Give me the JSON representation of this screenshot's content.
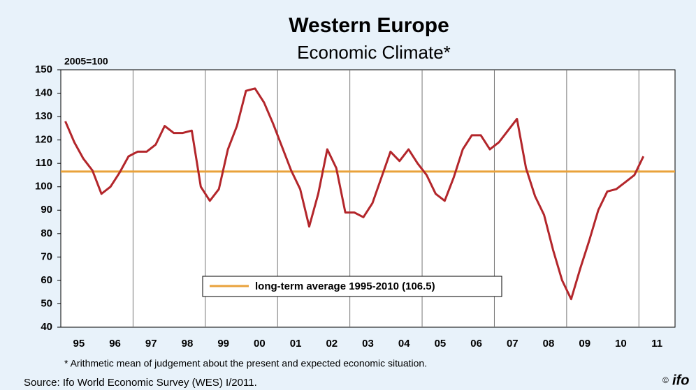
{
  "chart_data": {
    "type": "line",
    "title": "Western Europe",
    "subtitle": "Economic Climate*",
    "y_label": "2005=100",
    "footnote": "* Arithmetic mean of judgement about the present and expected economic situation.",
    "source": "Source: Ifo World Economic Survey (WES) I/2011.",
    "logo": "ifo",
    "xlim": [
      1995,
      2012
    ],
    "xticks": [
      {
        "value": 1995.5,
        "label": "95"
      },
      {
        "value": 1996.5,
        "label": "96"
      },
      {
        "value": 1997.5,
        "label": "97"
      },
      {
        "value": 1998.5,
        "label": "98"
      },
      {
        "value": 1999.5,
        "label": "99"
      },
      {
        "value": 2000.5,
        "label": "00"
      },
      {
        "value": 2001.5,
        "label": "01"
      },
      {
        "value": 2002.5,
        "label": "02"
      },
      {
        "value": 2003.5,
        "label": "03"
      },
      {
        "value": 2004.5,
        "label": "04"
      },
      {
        "value": 2005.5,
        "label": "05"
      },
      {
        "value": 2006.5,
        "label": "06"
      },
      {
        "value": 2007.5,
        "label": "07"
      },
      {
        "value": 2008.5,
        "label": "08"
      },
      {
        "value": 2009.5,
        "label": "09"
      },
      {
        "value": 2010.5,
        "label": "10"
      },
      {
        "value": 2011.5,
        "label": "11"
      }
    ],
    "xgrid": [
      1997,
      1999,
      2001,
      2003,
      2005,
      2007,
      2009,
      2011
    ],
    "ylim": [
      40,
      150
    ],
    "yticks": [
      40,
      50,
      60,
      70,
      80,
      90,
      100,
      110,
      120,
      130,
      140,
      150
    ],
    "x": [
      1995.125,
      1995.375,
      1995.625,
      1995.875,
      1996.125,
      1996.375,
      1996.625,
      1996.875,
      1997.125,
      1997.375,
      1997.625,
      1997.875,
      1998.125,
      1998.375,
      1998.625,
      1998.875,
      1999.125,
      1999.375,
      1999.625,
      1999.875,
      2000.125,
      2000.375,
      2000.625,
      2000.875,
      2001.125,
      2001.375,
      2001.625,
      2001.875,
      2002.125,
      2002.375,
      2002.625,
      2002.875,
      2003.125,
      2003.375,
      2003.625,
      2003.875,
      2004.125,
      2004.375,
      2004.625,
      2004.875,
      2005.125,
      2005.375,
      2005.625,
      2005.875,
      2006.125,
      2006.375,
      2006.625,
      2006.875,
      2007.125,
      2007.375,
      2007.625,
      2007.875,
      2008.125,
      2008.375,
      2008.625,
      2008.875,
      2009.125,
      2009.375,
      2009.625,
      2009.875,
      2010.125,
      2010.375,
      2010.625,
      2010.875,
      2011.125
    ],
    "series": [
      {
        "name": "Economic Climate",
        "color": "#b3262b",
        "values": [
          128,
          119,
          112,
          107,
          97,
          100,
          106,
          113,
          115,
          115,
          118,
          126,
          123,
          123,
          124,
          100,
          94,
          99,
          116,
          126,
          141,
          142,
          136,
          127,
          117,
          107,
          99,
          83,
          97,
          116,
          108,
          89,
          89,
          87,
          93,
          104,
          115,
          111,
          116,
          110,
          105,
          97,
          94,
          104,
          116,
          122,
          122,
          116,
          119,
          124,
          129,
          108,
          96,
          88,
          73,
          60,
          52,
          65,
          77,
          90,
          98,
          99,
          102,
          105,
          113
        ]
      }
    ],
    "reference_line": {
      "name": "long-term average 1995-2010 (106.5)",
      "value": 106.5,
      "color": "#e9a23b"
    }
  }
}
